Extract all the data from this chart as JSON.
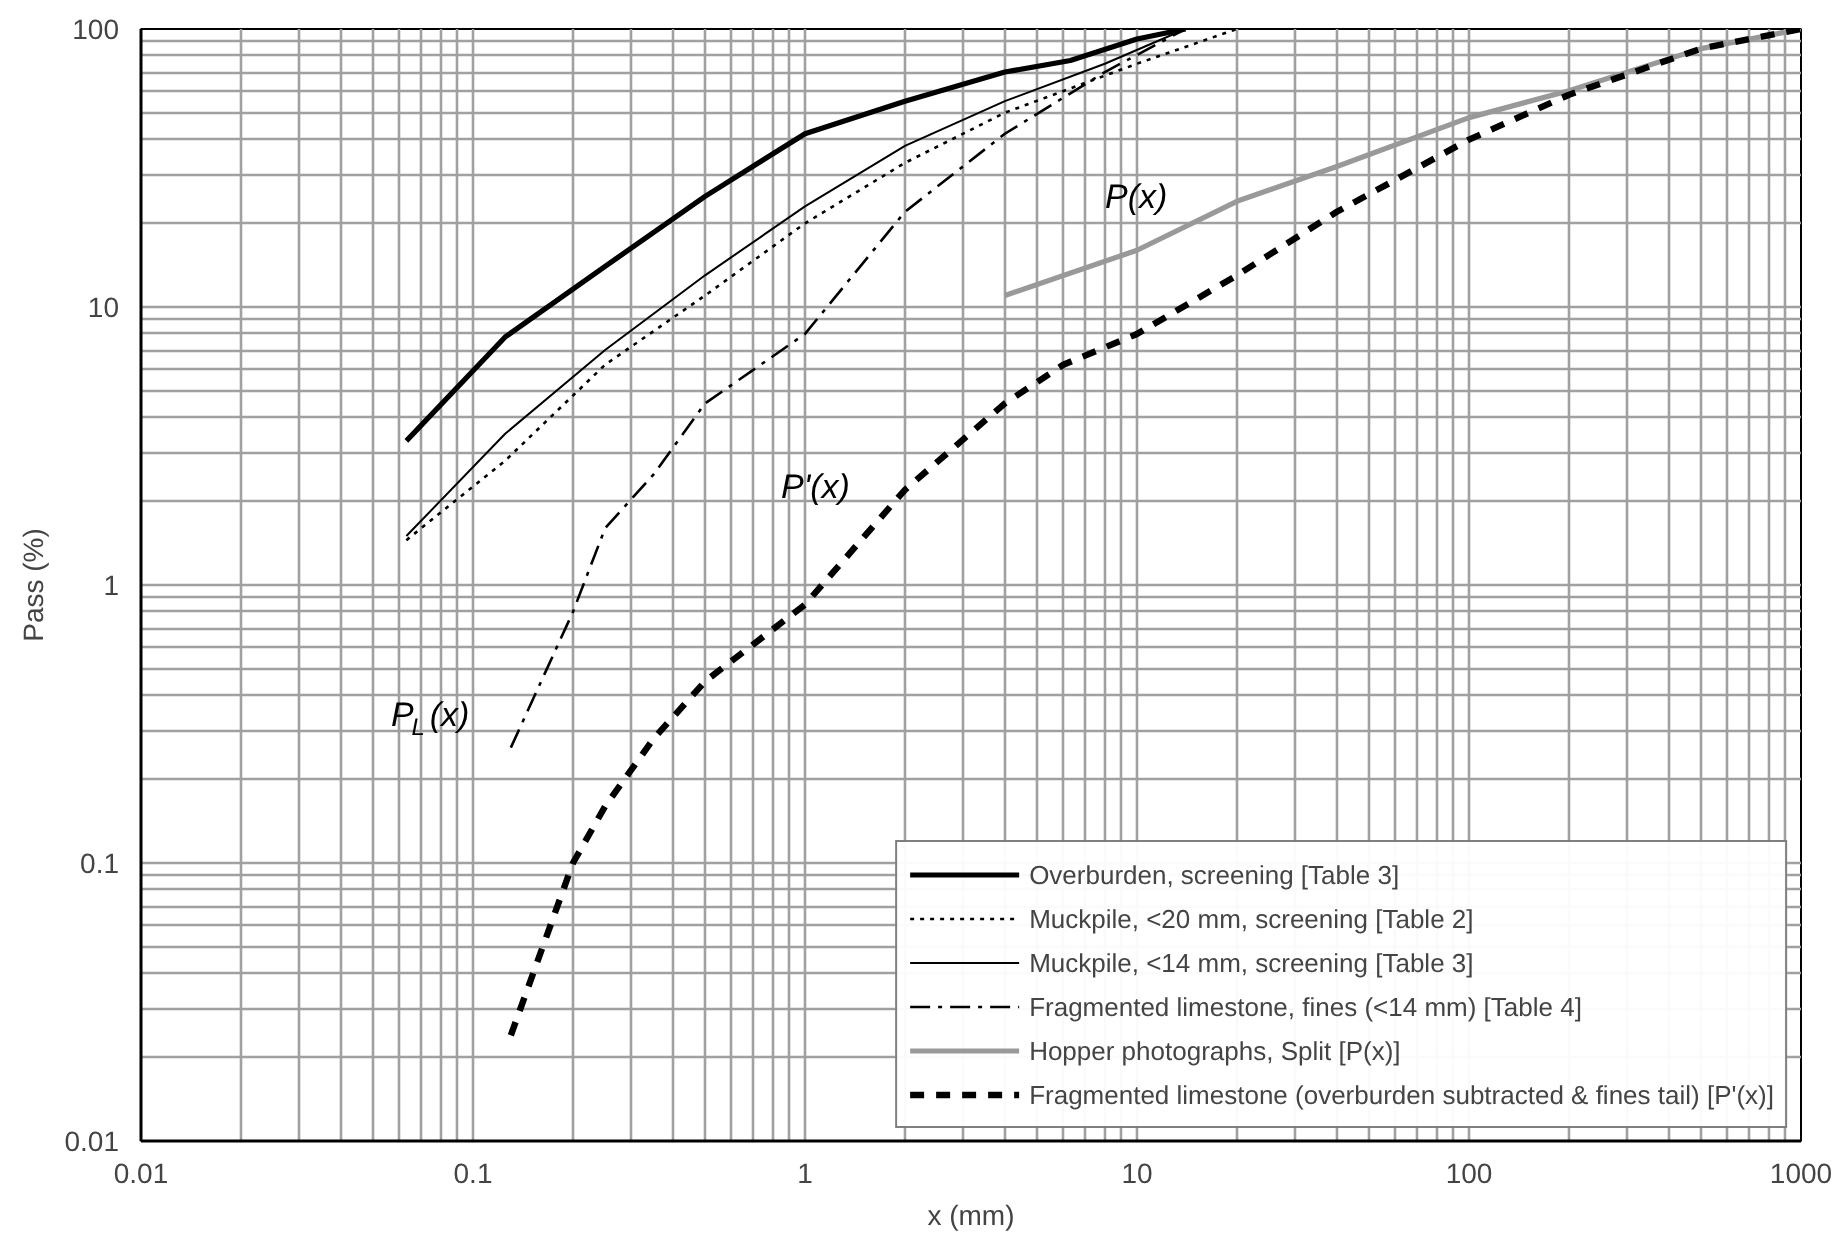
{
  "chart_data": {
    "type": "line",
    "xlabel": "x (mm)",
    "ylabel": "Pass (%)",
    "log": "xy",
    "xlim": [
      0.01,
      1000
    ],
    "ylim": [
      0.01,
      100
    ],
    "xticks": [
      0.01,
      0.1,
      1,
      10,
      100,
      1000
    ],
    "yticks": [
      0.01,
      0.1,
      1,
      10,
      100
    ],
    "grid": true,
    "legend": "bottom right",
    "marker": "none",
    "series": [
      {
        "name": "Overburden, screening [Table 3]",
        "color": "#000000",
        "line_style": "solid",
        "x": [
          0.063,
          0.125,
          0.25,
          0.5,
          1,
          2,
          4,
          6.3,
          10,
          14
        ],
        "values": [
          3.3,
          7.8,
          14,
          25,
          42,
          55,
          70,
          77,
          92,
          100
        ]
      },
      {
        "name": "Muckpile, <20 mm, screening [Table 2]",
        "color": "#000000",
        "line_style": "dotted",
        "x": [
          0.063,
          0.125,
          0.25,
          0.5,
          1,
          2,
          4,
          10,
          20
        ],
        "values": [
          1.45,
          2.8,
          6.2,
          11,
          20,
          33,
          50,
          75,
          100
        ]
      },
      {
        "name": "Muckpile, <14 mm, screening [Table 3]",
        "color": "#000000",
        "line_style": "solid",
        "x": [
          0.063,
          0.125,
          0.25,
          0.5,
          1,
          2,
          4,
          8,
          14
        ],
        "values": [
          1.5,
          3.5,
          7,
          13,
          23,
          38,
          55,
          75,
          100
        ]
      },
      {
        "name": "Fragmented limestone, fines (<14 mm) [Table 4]",
        "color": "#000000",
        "line_style": "dashdot",
        "x": [
          0.13,
          0.2,
          0.25,
          0.35,
          0.5,
          1,
          2,
          4,
          8,
          14
        ],
        "values": [
          0.26,
          0.8,
          1.6,
          2.5,
          4.5,
          8,
          22,
          42,
          70,
          100
        ]
      },
      {
        "name": "Hopper photographs, Split [P(x)]",
        "color": "#999999",
        "line_style": "solid",
        "x": [
          4,
          10,
          20,
          40,
          100,
          200,
          500,
          1000
        ],
        "values": [
          11,
          16,
          24,
          32,
          48,
          60,
          85,
          100
        ]
      },
      {
        "name": "Fragmented limestone (overburden subtracted & fines tail) [P'(x)]",
        "color": "#000000",
        "line_style": "dashed",
        "x": [
          0.13,
          0.2,
          0.25,
          0.35,
          0.5,
          1,
          2,
          4,
          6,
          10,
          20,
          40,
          100,
          200,
          500,
          1000
        ],
        "values": [
          0.024,
          0.1,
          0.16,
          0.28,
          0.45,
          0.85,
          2.2,
          4.5,
          6.2,
          8,
          13,
          22,
          40,
          58,
          85,
          100
        ]
      }
    ],
    "annotations": [
      "P(x)",
      "P'(x)",
      "P$_{L}$(x)"
    ]
  }
}
